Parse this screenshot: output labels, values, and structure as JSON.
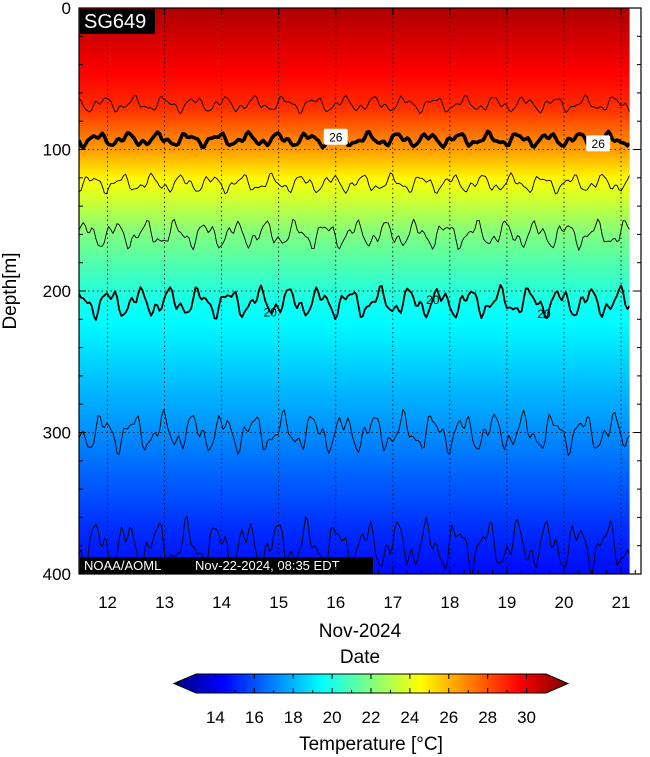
{
  "chart_data": {
    "type": "heatmap",
    "glider_id": "SG649",
    "credit_org": "NOAA/AOML",
    "credit_timestamp": "Nov-22-2024, 08:35 EDT",
    "xlabel_month": "Nov-2024",
    "xlabel": "Date",
    "ylabel": "Depth[m]",
    "x_ticks": [
      "12",
      "13",
      "14",
      "15",
      "16",
      "17",
      "18",
      "19",
      "20",
      "21"
    ],
    "xlim": [
      11.5,
      21.35
    ],
    "ylim": [
      0,
      400
    ],
    "y_ticks": [
      0,
      100,
      200,
      300,
      400
    ],
    "data_xmax": 21.15,
    "grid": true,
    "colorbar": {
      "label": "Temperature [°C]",
      "range": [
        13,
        31
      ],
      "ticks": [
        14,
        16,
        18,
        20,
        22,
        24,
        26,
        28,
        30
      ],
      "extend": "both"
    },
    "temperature_profile": {
      "depth_m": [
        0,
        70,
        100,
        125,
        160,
        210,
        290,
        370,
        400
      ],
      "temp_c": [
        30.2,
        28,
        26,
        24,
        22,
        20,
        18,
        16,
        15.4
      ]
    },
    "contours": [
      {
        "level": 28,
        "mean_depth_m": 68,
        "amplitude_m": 7,
        "highlight": false,
        "labels": []
      },
      {
        "level": 26,
        "mean_depth_m": 93,
        "amplitude_m": 6,
        "highlight": true,
        "labels": [
          {
            "x": 16.0,
            "text": "26"
          },
          {
            "x": 20.6,
            "text": "26"
          }
        ]
      },
      {
        "level": 24,
        "mean_depth_m": 124,
        "amplitude_m": 8,
        "highlight": false,
        "labels": []
      },
      {
        "level": 22,
        "mean_depth_m": 160,
        "amplitude_m": 12,
        "highlight": false,
        "labels": []
      },
      {
        "level": 20,
        "mean_depth_m": 208,
        "amplitude_m": 13,
        "highlight": false,
        "labels": [
          {
            "x": 14.85,
            "text": "20"
          },
          {
            "x": 17.7,
            "text": "20"
          },
          {
            "x": 19.65,
            "text": "20"
          }
        ]
      },
      {
        "level": 18,
        "mean_depth_m": 300,
        "amplitude_m": 17,
        "highlight": false,
        "labels": []
      },
      {
        "level": 16,
        "mean_depth_m": 380,
        "amplitude_m": 22,
        "highlight": false,
        "labels": []
      }
    ]
  }
}
